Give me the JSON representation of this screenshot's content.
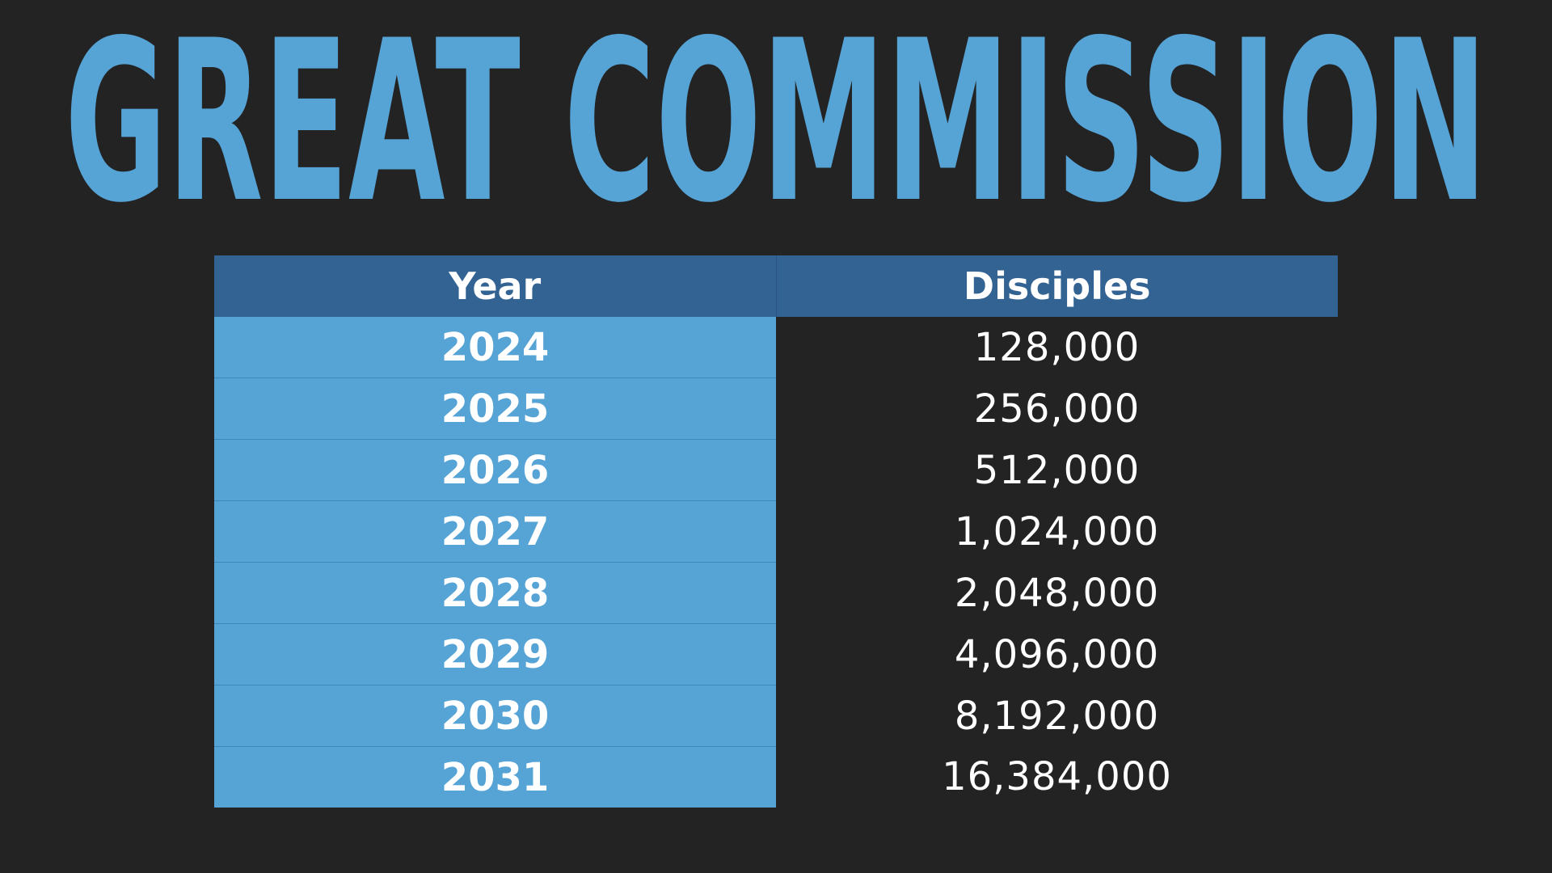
{
  "slide": {
    "title": "GREAT COMMISSION",
    "colors": {
      "background": "#232323",
      "title": "#56a3d6",
      "header_fill": "#336393",
      "year_fill": "#56a3d6",
      "text": "#ffffff"
    }
  },
  "chart_data": {
    "type": "table",
    "title": "GREAT COMMISSION",
    "columns": [
      "Year",
      "Disciples"
    ],
    "rows": [
      {
        "year": "2024",
        "disciples": "128,000"
      },
      {
        "year": "2025",
        "disciples": "256,000"
      },
      {
        "year": "2026",
        "disciples": "512,000"
      },
      {
        "year": "2027",
        "disciples": "1,024,000"
      },
      {
        "year": "2028",
        "disciples": "2,048,000"
      },
      {
        "year": "2029",
        "disciples": "4,096,000"
      },
      {
        "year": "2030",
        "disciples": "8,192,000"
      },
      {
        "year": "2031",
        "disciples": "16,384,000"
      }
    ]
  }
}
